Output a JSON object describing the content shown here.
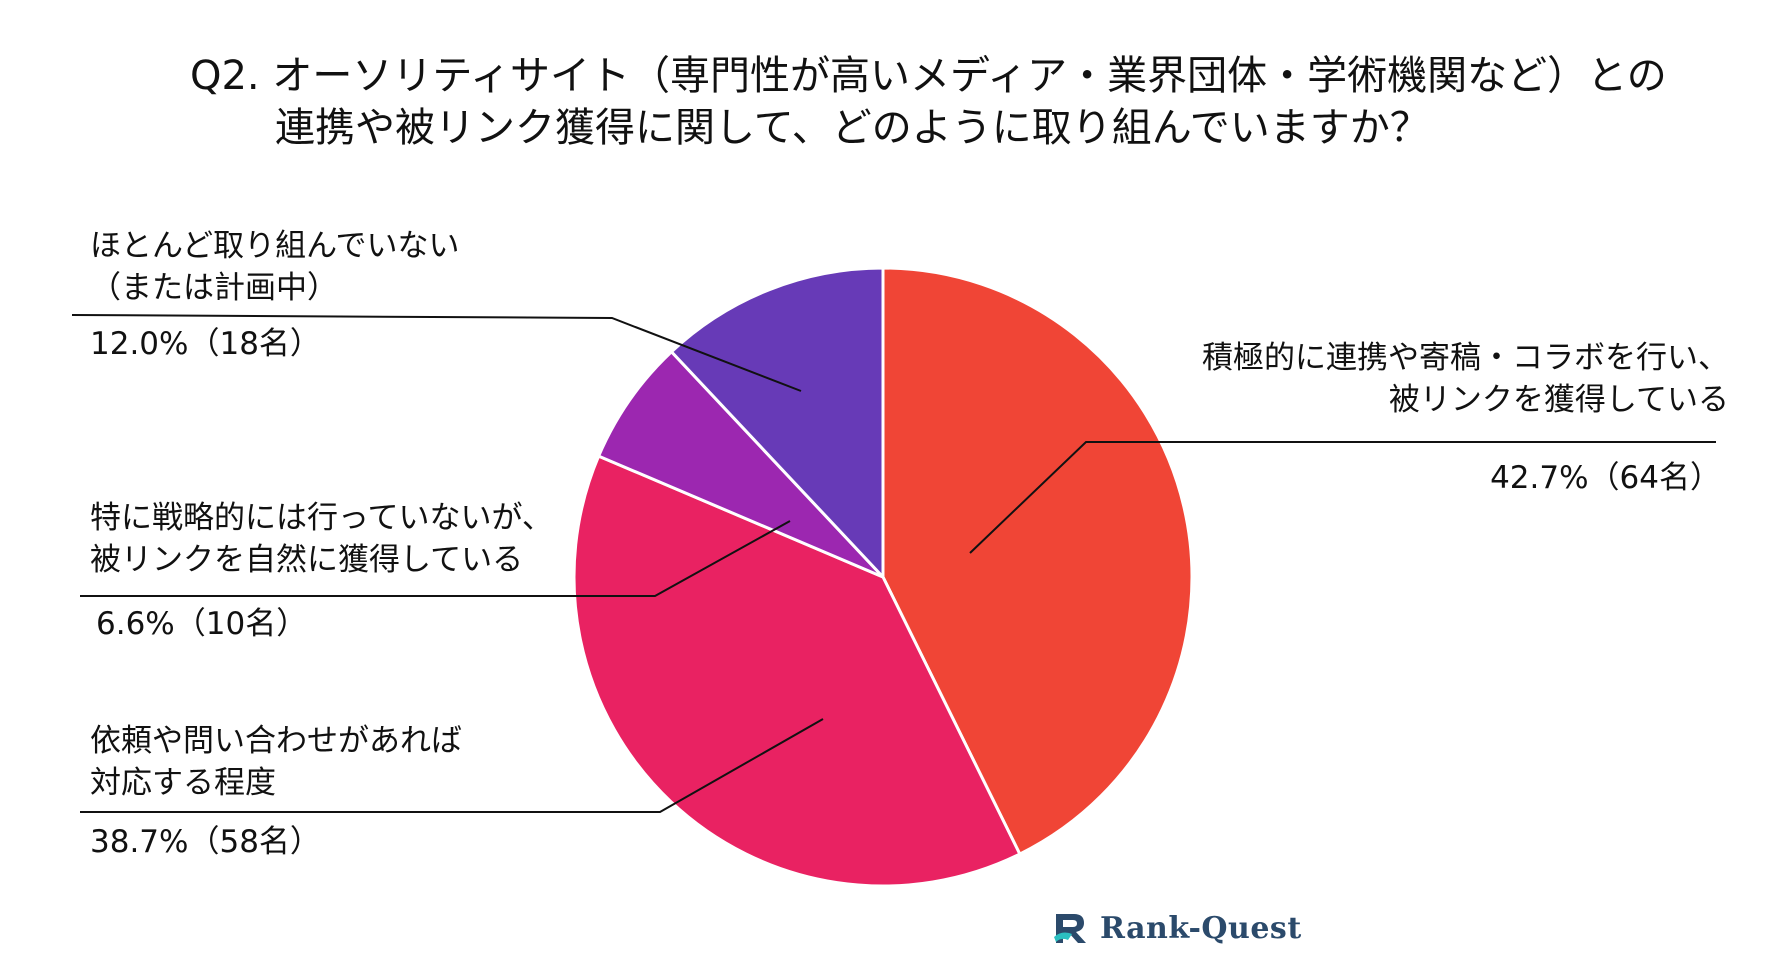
{
  "chart_data": {
    "type": "pie",
    "title_lines": [
      "Q2. オーソリティサイト（専門性が高いメディア・業界団体・学術機関など）との",
      "連携や被リンク獲得に関して、どのように取り組んでいますか？"
    ],
    "slices": [
      {
        "label_lines": [
          "積極的に連携や寄稿・コラボを行い、",
          "被リンクを獲得している"
        ],
        "value": 42.7,
        "count": 64,
        "value_text": "42.7%（64名）",
        "color": "#f04536"
      },
      {
        "label_lines": [
          "依頼や問い合わせがあれば",
          "対応する程度"
        ],
        "value": 38.7,
        "count": 58,
        "value_text": "38.7%（58名）",
        "color": "#e92262"
      },
      {
        "label_lines": [
          "特に戦略的には行っていないが、",
          "被リンクを自然に獲得している"
        ],
        "value": 6.6,
        "count": 10,
        "value_text": "6.6%（10名）",
        "color": "#9c27b0"
      },
      {
        "label_lines": [
          "ほとんど取り組んでいない",
          "（または計画中）"
        ],
        "value": 12.0,
        "count": 18,
        "value_text": "12.0%（18名）",
        "color": "#673ab7"
      }
    ]
  },
  "brand": {
    "name": "Rank-Quest",
    "logo_icon": "rank-quest-logo-icon",
    "color": "#2b4a6b",
    "accent": "#2bbfc1"
  }
}
